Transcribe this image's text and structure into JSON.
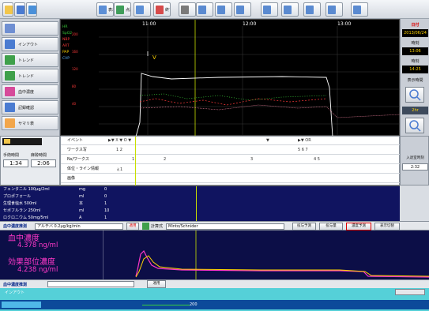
{
  "toolbar": {
    "buttons": [
      {
        "label": "",
        "color": "#f2c64b"
      },
      {
        "label": "",
        "color": "#4a7bd1"
      },
      {
        "label": "",
        "color": "#4a90d9"
      },
      {
        "label": "表示",
        "color": "#5c8fd6"
      },
      {
        "label": "点滴",
        "color": "#3f9d5a"
      },
      {
        "label": "",
        "color": "#5c8fd6"
      },
      {
        "label": "終了",
        "color": "#d64a4a"
      },
      {
        "label": "",
        "color": "#7a7a7a"
      },
      {
        "label": "",
        "color": "#5a8ad0"
      },
      {
        "label": "",
        "color": "#5a8ad0"
      },
      {
        "label": "",
        "color": "#5a8ad0"
      },
      {
        "label": "",
        "color": "#5a8ad0"
      },
      {
        "label": "",
        "color": "#5a8ad0"
      },
      {
        "label": "",
        "color": "#5a8ad0"
      },
      {
        "label": "",
        "color": "#5a8ad0"
      },
      {
        "label": "",
        "color": "#5a8ad0"
      }
    ]
  },
  "nav": {
    "items": [
      {
        "label": "",
        "icon": "patient-icon"
      },
      {
        "label": "インアウト",
        "icon": "io-icon"
      },
      {
        "label": "トレンド",
        "icon": "trend-icon"
      },
      {
        "label": "トレンド",
        "icon": "trend2-icon"
      },
      {
        "label": "血中濃度",
        "icon": "conc-icon"
      },
      {
        "label": "記録確認",
        "icon": "record-icon"
      },
      {
        "label": "サマリ表",
        "icon": "summary-icon"
      }
    ]
  },
  "monitor": {
    "times": [
      "11:00",
      "12:00",
      "13:00"
    ],
    "left_labels": [
      {
        "text": "HR",
        "color": "#3ad13a"
      },
      {
        "text": "SpO2",
        "color": "#3ad13a"
      },
      {
        "text": "NBP",
        "color": "#ff3a3a"
      },
      {
        "text": "ART",
        "color": "#ff3a3a"
      },
      {
        "text": "PAP",
        "color": "#ffd400"
      },
      {
        "text": "CVP",
        "color": "#5ab4ff"
      }
    ],
    "scale_labels": [
      "200",
      "160",
      "120",
      "80",
      "40"
    ],
    "marker_v": "V",
    "colors": {
      "trace_white": "#ffffff",
      "trace_red": "#ff3a3a",
      "trace_green": "#3ad13a",
      "cursor": "#c8e000"
    }
  },
  "right_panel": {
    "label1": "日付",
    "date": "2013/06/24",
    "label2": "時刻",
    "time1": "13:06",
    "label3": "時刻",
    "time2": "14:25",
    "label4": "表示時間",
    "btn1": "2hr"
  },
  "time_block": {
    "header": "",
    "col1_label": "手術時間",
    "col2_label": "麻酔時間",
    "col1_value": "1:34",
    "col2_value": "2:06"
  },
  "events": {
    "rows": [
      {
        "label": "イベント",
        "values": [
          {
            "text": "▶▼ X ▼ O ▼",
            "left": 60
          },
          {
            "text": "▼",
            "left": 260
          },
          {
            "text": "▶▼ OR",
            "left": 300
          }
        ]
      },
      {
        "label": "ワークス写",
        "values": [
          {
            "text": "1 2",
            "left": 70
          },
          {
            "text": "5 6 7",
            "left": 300
          }
        ]
      },
      {
        "label": "Ns/ワークス",
        "values": [
          {
            "text": "1",
            "left": 90
          },
          {
            "text": "2",
            "left": 130
          },
          {
            "text": "3",
            "left": 240
          },
          {
            "text": "4 5",
            "left": 320
          }
        ]
      },
      {
        "label": "体位・ライン情報",
        "values": [
          {
            "text": "ぇ1",
            "left": 70
          }
        ]
      },
      {
        "label": "画像",
        "values": []
      }
    ]
  },
  "side_info": {
    "label": "入退室時刻",
    "time": "2:32"
  },
  "druglist": {
    "rows": [
      {
        "name": "フェンタニル 100μg/2ml",
        "unit": "mg",
        "col": "0"
      },
      {
        "name": "プロポフォール",
        "unit": "ml",
        "col": "0"
      },
      {
        "name": "生理食塩水 500ml",
        "unit": "本",
        "col": "1"
      },
      {
        "name": "セボフルラン 250ml",
        "unit": "ml",
        "col": "10"
      },
      {
        "name": "ロクロニウム 50mg/5ml",
        "unit": "A",
        "col": "1"
      }
    ]
  },
  "concbar": {
    "label": "血中濃度推測",
    "select1": "アルチバ 0.2μg/kg/min",
    "btn_apply": "適用",
    "label2": "計算式",
    "select2": "Minto/Schnider",
    "btn_a": "投与予測",
    "btn_b": "投与量",
    "btn_c": "濃度予測",
    "btn_d": "表示切替"
  },
  "concgraph": {
    "label1": "血中濃度",
    "value1": "4.378 ng/ml",
    "label2": "効果部位濃度",
    "value2": "4.238 ng/ml"
  },
  "bottombar": {
    "label": "血中濃度推測",
    "btn": "適用"
  },
  "infuse": {
    "header": "インアウト",
    "right_btn": "",
    "row_label": "",
    "row_value": "200"
  }
}
